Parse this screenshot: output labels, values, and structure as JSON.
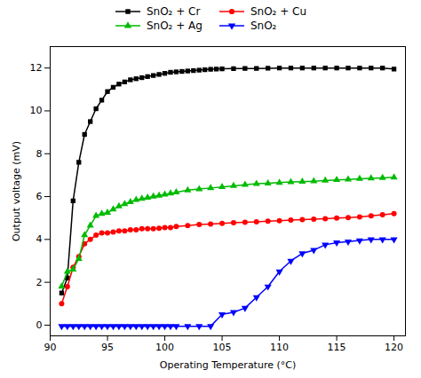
{
  "chart_data": {
    "type": "line",
    "xlabel": "Operating Temperature (°C)",
    "ylabel": "Output voltage (mV)",
    "xlim": [
      90,
      121
    ],
    "ylim": [
      -0.5,
      13
    ],
    "xticks": [
      90,
      95,
      100,
      105,
      110,
      115,
      120
    ],
    "yticks": [
      0,
      2,
      4,
      6,
      8,
      10,
      12
    ],
    "grid": false,
    "legend": "top",
    "series": [
      {
        "name": "SnO₂ + Cr",
        "color": "#000000",
        "marker": "square",
        "x": [
          91,
          91.5,
          92,
          92.5,
          93,
          93.5,
          94,
          94.5,
          95,
          95.5,
          96,
          96.5,
          97,
          97.5,
          98,
          98.5,
          99,
          99.5,
          100,
          100.5,
          101,
          101.5,
          102,
          102.5,
          103,
          103.5,
          104,
          104.5,
          105,
          106,
          107,
          108,
          109,
          110,
          111,
          112,
          113,
          114,
          115,
          116,
          117,
          118,
          119,
          120
        ],
        "values": [
          1.5,
          2.2,
          5.8,
          7.6,
          8.9,
          9.5,
          10.1,
          10.5,
          10.9,
          11.1,
          11.25,
          11.35,
          11.45,
          11.5,
          11.55,
          11.6,
          11.65,
          11.7,
          11.75,
          11.8,
          11.82,
          11.84,
          11.86,
          11.88,
          11.9,
          11.92,
          11.94,
          11.95,
          11.96,
          11.97,
          11.98,
          11.98,
          11.99,
          12.0,
          12.0,
          12.0,
          12.0,
          12.0,
          12.0,
          12.0,
          12.0,
          12.0,
          12.0,
          11.95
        ]
      },
      {
        "name": "SnO₂ + Cu",
        "color": "#ff0000",
        "marker": "circle",
        "x": [
          91,
          91.5,
          92,
          92.5,
          93,
          93.5,
          94,
          94.5,
          95,
          95.5,
          96,
          96.5,
          97,
          97.5,
          98,
          98.5,
          99,
          99.5,
          100,
          100.5,
          101,
          102,
          103,
          104,
          105,
          106,
          107,
          108,
          109,
          110,
          111,
          112,
          113,
          114,
          115,
          116,
          117,
          118,
          119,
          120
        ],
        "values": [
          1.0,
          1.8,
          2.7,
          3.2,
          3.8,
          4.0,
          4.2,
          4.3,
          4.3,
          4.35,
          4.4,
          4.4,
          4.45,
          4.45,
          4.5,
          4.5,
          4.5,
          4.52,
          4.55,
          4.55,
          4.6,
          4.65,
          4.7,
          4.72,
          4.75,
          4.78,
          4.8,
          4.82,
          4.85,
          4.87,
          4.9,
          4.92,
          4.95,
          4.97,
          5.0,
          5.02,
          5.05,
          5.1,
          5.15,
          5.2
        ]
      },
      {
        "name": "SnO₂ + Ag",
        "color": "#00bb00",
        "marker": "triangle-up",
        "x": [
          91,
          91.5,
          92,
          92.5,
          93,
          93.5,
          94,
          94.5,
          95,
          95.5,
          96,
          96.5,
          97,
          97.5,
          98,
          98.5,
          99,
          99.5,
          100,
          100.5,
          101,
          102,
          103,
          104,
          105,
          106,
          107,
          108,
          109,
          110,
          111,
          112,
          113,
          114,
          115,
          116,
          117,
          118,
          119,
          120
        ],
        "values": [
          1.8,
          2.5,
          2.6,
          3.1,
          4.2,
          4.65,
          5.1,
          5.2,
          5.25,
          5.4,
          5.55,
          5.65,
          5.75,
          5.85,
          5.9,
          5.95,
          6.0,
          6.05,
          6.1,
          6.15,
          6.2,
          6.3,
          6.35,
          6.4,
          6.45,
          6.5,
          6.55,
          6.6,
          6.62,
          6.65,
          6.68,
          6.7,
          6.72,
          6.75,
          6.78,
          6.8,
          6.83,
          6.85,
          6.87,
          6.9
        ]
      },
      {
        "name": "SnO₂",
        "color": "#0000ff",
        "marker": "triangle-down",
        "x": [
          91,
          91.5,
          92,
          92.5,
          93,
          93.5,
          94,
          94.5,
          95,
          95.5,
          96,
          96.5,
          97,
          97.5,
          98,
          98.5,
          99,
          99.5,
          100,
          100.5,
          101,
          102,
          103,
          104,
          105,
          106,
          107,
          108,
          109,
          110,
          111,
          112,
          113,
          114,
          115,
          116,
          117,
          118,
          119,
          120
        ],
        "values": [
          -0.05,
          -0.05,
          -0.05,
          -0.05,
          -0.05,
          -0.05,
          -0.05,
          -0.05,
          -0.05,
          -0.05,
          -0.05,
          -0.05,
          -0.05,
          -0.05,
          -0.05,
          -0.05,
          -0.05,
          -0.05,
          -0.05,
          -0.05,
          -0.05,
          -0.05,
          -0.05,
          -0.05,
          0.5,
          0.6,
          0.8,
          1.3,
          1.8,
          2.5,
          3.0,
          3.35,
          3.5,
          3.75,
          3.85,
          3.9,
          3.95,
          4.0,
          4.0,
          4.0
        ]
      }
    ]
  }
}
